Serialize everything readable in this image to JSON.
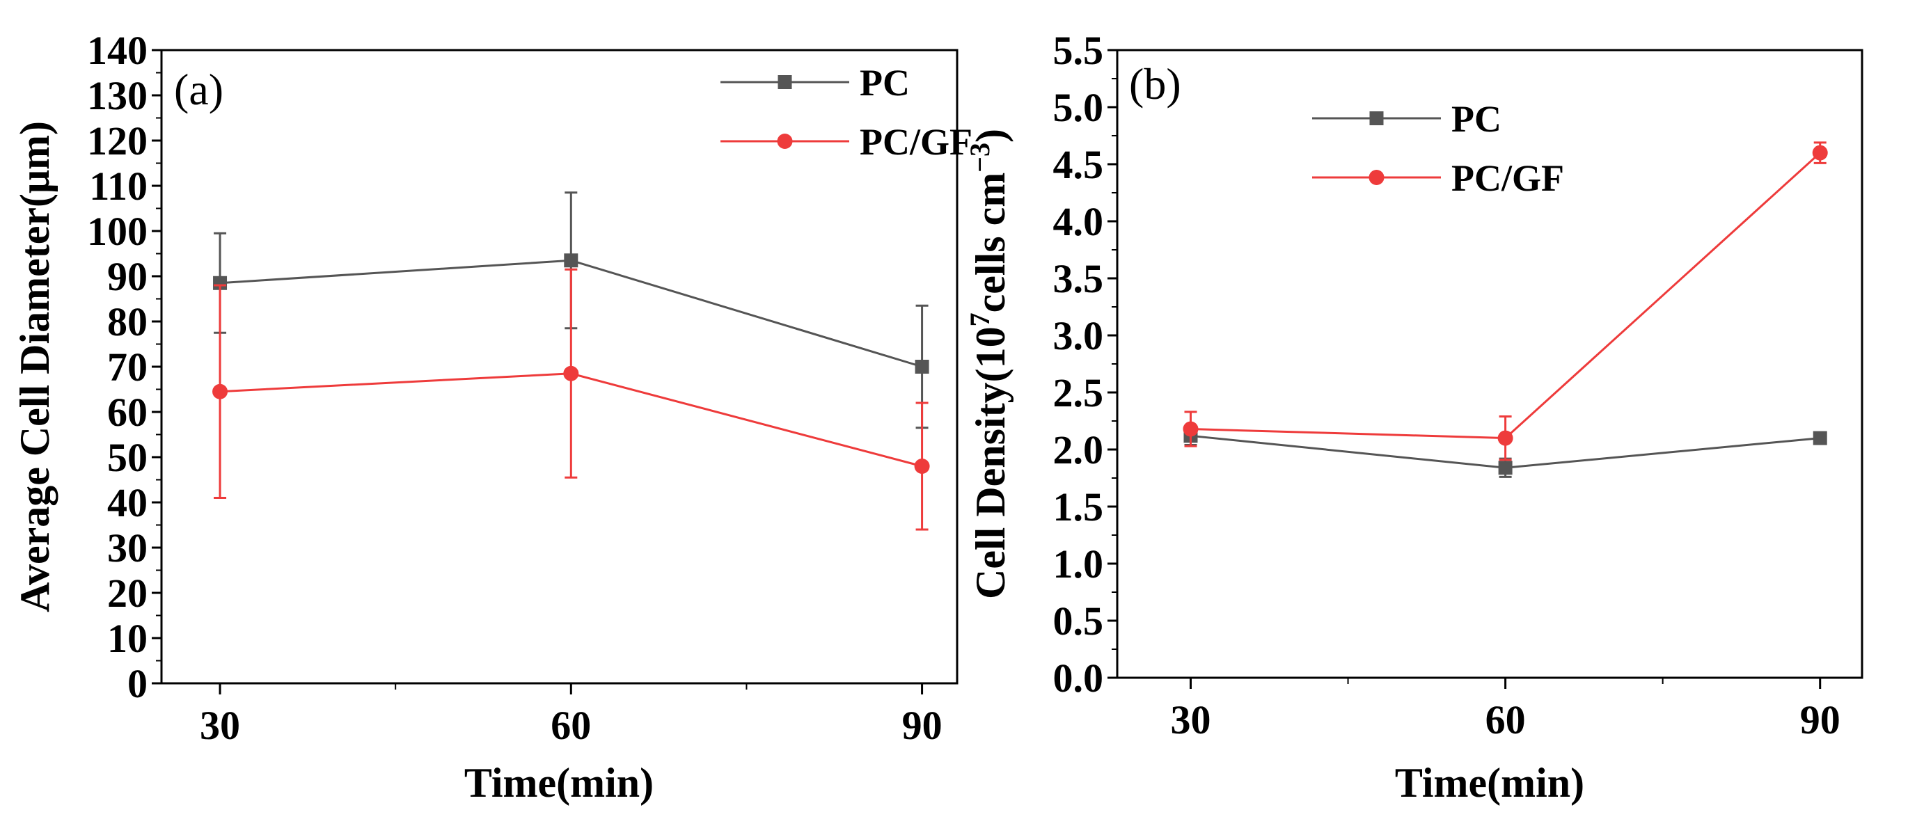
{
  "chart_data": [
    {
      "type": "line",
      "panel_label": "(a)",
      "xlabel": "Time(min)",
      "ylabel": "Average Cell Diameter(μm)",
      "x": [
        30,
        60,
        90
      ],
      "xlim": [
        25,
        93
      ],
      "ylim": [
        0,
        140
      ],
      "yticks": [
        0,
        10,
        20,
        30,
        40,
        50,
        60,
        70,
        80,
        90,
        100,
        110,
        120,
        130,
        140
      ],
      "xticks": [
        30,
        60,
        90
      ],
      "legend_position": "top-right",
      "series": [
        {
          "name": "PC",
          "color": "#555555",
          "marker": "square",
          "values": [
            88.5,
            93.5,
            70.0
          ],
          "errors": [
            11.0,
            15.0,
            13.5
          ]
        },
        {
          "name": "PC/GF",
          "color": "#ee3b3b",
          "marker": "circle",
          "values": [
            64.5,
            68.5,
            48.0
          ],
          "errors": [
            23.5,
            23.0,
            14.0
          ]
        }
      ]
    },
    {
      "type": "line",
      "panel_label": "(b)",
      "xlabel": "Time(min)",
      "ylabel_main": "Cell Density(10",
      "ylabel_sup1": "7",
      "ylabel_mid": "cells cm",
      "ylabel_sup2": "−3",
      "ylabel_end": ")",
      "x": [
        30,
        60,
        90
      ],
      "xlim": [
        23,
        94
      ],
      "ylim": [
        0,
        5.5
      ],
      "yticks": [
        0.0,
        0.5,
        1.0,
        1.5,
        2.0,
        2.5,
        3.0,
        3.5,
        4.0,
        4.5,
        5.0,
        5.5
      ],
      "xticks": [
        30,
        60,
        90
      ],
      "legend_position": "top-center",
      "series": [
        {
          "name": "PC",
          "color": "#555555",
          "marker": "square",
          "values": [
            2.12,
            1.84,
            2.1
          ],
          "errors": [
            0.08,
            0.08,
            0.03
          ]
        },
        {
          "name": "PC/GF",
          "color": "#ee3b3b",
          "marker": "circle",
          "values": [
            2.18,
            2.1,
            4.6
          ],
          "errors": [
            0.15,
            0.19,
            0.09
          ]
        }
      ]
    }
  ]
}
